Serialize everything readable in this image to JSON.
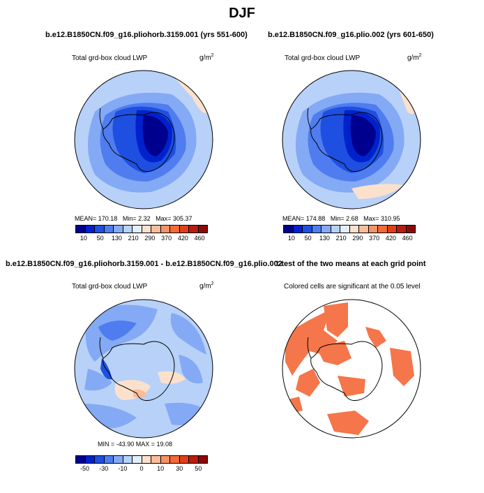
{
  "figure": {
    "title": "DJF",
    "variable_label": "Total grd-box cloud LWP",
    "units_base": "g/m",
    "units_exp": "2"
  },
  "panels": [
    {
      "title": "b.e12.B1850CN.f09_g16.pliohorb.3159.001 (yrs 551-600)",
      "stats": {
        "mean_label": "MEAN=",
        "mean": "170.18",
        "min_label": "Min=",
        "min": "2.32",
        "max_label": "Max=",
        "max": "305.37"
      }
    },
    {
      "title": "b.e12.B1850CN.f09_g16.plio.002 (yrs 601-650)",
      "stats": {
        "mean_label": "MEAN=",
        "mean": "174.88",
        "min_label": "Min=",
        "min": "2.68",
        "max_label": "Max=",
        "max": "310.95"
      }
    },
    {
      "title": "b.e12.B1850CN.f09_g16.pliohorb.3159.001 - b.e12.B1850CN.f09_g16.plio.002",
      "stats_text": "MIN = -43.90  MAX =  19.08"
    },
    {
      "title": "t-test of the two means at each grid point",
      "subtitle": "Colored cells are significant at the 0.05 level"
    }
  ],
  "colorbars": {
    "colors": [
      "#00008f",
      "#0022cc",
      "#1f4fe0",
      "#4f7df0",
      "#84aaf5",
      "#b7d1f8",
      "#e1eefc",
      "#fbe1cc",
      "#f9bd9a",
      "#f59268",
      "#f06a3a",
      "#e04016",
      "#b81e0b",
      "#8c0a05"
    ],
    "abs_labels": [
      "10",
      "50",
      "130",
      "210",
      "290",
      "370",
      "420",
      "460"
    ],
    "diff_labels": [
      "-50",
      "-30",
      "-10",
      "0",
      "10",
      "30",
      "50"
    ]
  },
  "chart_data": [
    {
      "type": "heatmap",
      "projection": "south polar stereographic",
      "title": "b.e12.B1850CN.f09_g16.pliohorb.3159.001 (yrs 551-600)",
      "variable": "Total grd-box cloud LWP",
      "units": "g/m2",
      "mean": 170.18,
      "min": 2.32,
      "max": 305.37,
      "colorbar_levels": [
        10,
        50,
        130,
        210,
        290,
        370,
        420,
        460
      ]
    },
    {
      "type": "heatmap",
      "projection": "south polar stereographic",
      "title": "b.e12.B1850CN.f09_g16.plio.002 (yrs 601-650)",
      "variable": "Total grd-box cloud LWP",
      "units": "g/m2",
      "mean": 174.88,
      "min": 2.68,
      "max": 310.95,
      "colorbar_levels": [
        10,
        50,
        130,
        210,
        290,
        370,
        420,
        460
      ]
    },
    {
      "type": "heatmap",
      "projection": "south polar stereographic",
      "title": "b.e12.B1850CN.f09_g16.pliohorb.3159.001 - b.e12.B1850CN.f09_g16.plio.002",
      "variable": "Total grd-box cloud LWP",
      "units": "g/m2",
      "min": -43.9,
      "max": 19.08,
      "colorbar_levels": [
        -50,
        -30,
        -10,
        0,
        10,
        30,
        50
      ]
    },
    {
      "type": "heatmap",
      "projection": "south polar stereographic",
      "title": "t-test of the two means at each grid point",
      "subtitle": "Colored cells are significant at the 0.05 level",
      "significance_level": 0.05,
      "significant_color": "#f4764a"
    }
  ]
}
